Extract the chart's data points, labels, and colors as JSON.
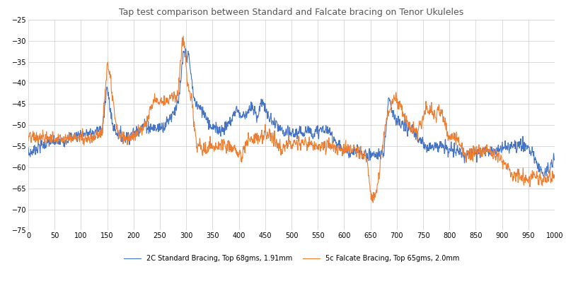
{
  "title": "Tap test comparison between Standard and Falcate bracing on Tenor Ukuleles",
  "xlim": [
    0,
    1000
  ],
  "ylim": [
    -75,
    -25
  ],
  "yticks": [
    -25,
    -30,
    -35,
    -40,
    -45,
    -50,
    -55,
    -60,
    -65,
    -70,
    -75
  ],
  "xticks": [
    0,
    50,
    100,
    150,
    200,
    250,
    300,
    350,
    400,
    450,
    500,
    550,
    600,
    650,
    700,
    750,
    800,
    850,
    900,
    950,
    1000
  ],
  "blue_label": "2C Standard Bracing, Top 68gms, 1.91mm",
  "orange_label": "5c Falcate Bracing, Top 65gms, 2.0mm",
  "blue_color": "#4472C4",
  "orange_color": "#ED7D31",
  "background_color": "#FFFFFF",
  "grid_color": "#CCCCCC",
  "linewidth": 0.8,
  "title_fontsize": 9,
  "tick_fontsize": 7
}
